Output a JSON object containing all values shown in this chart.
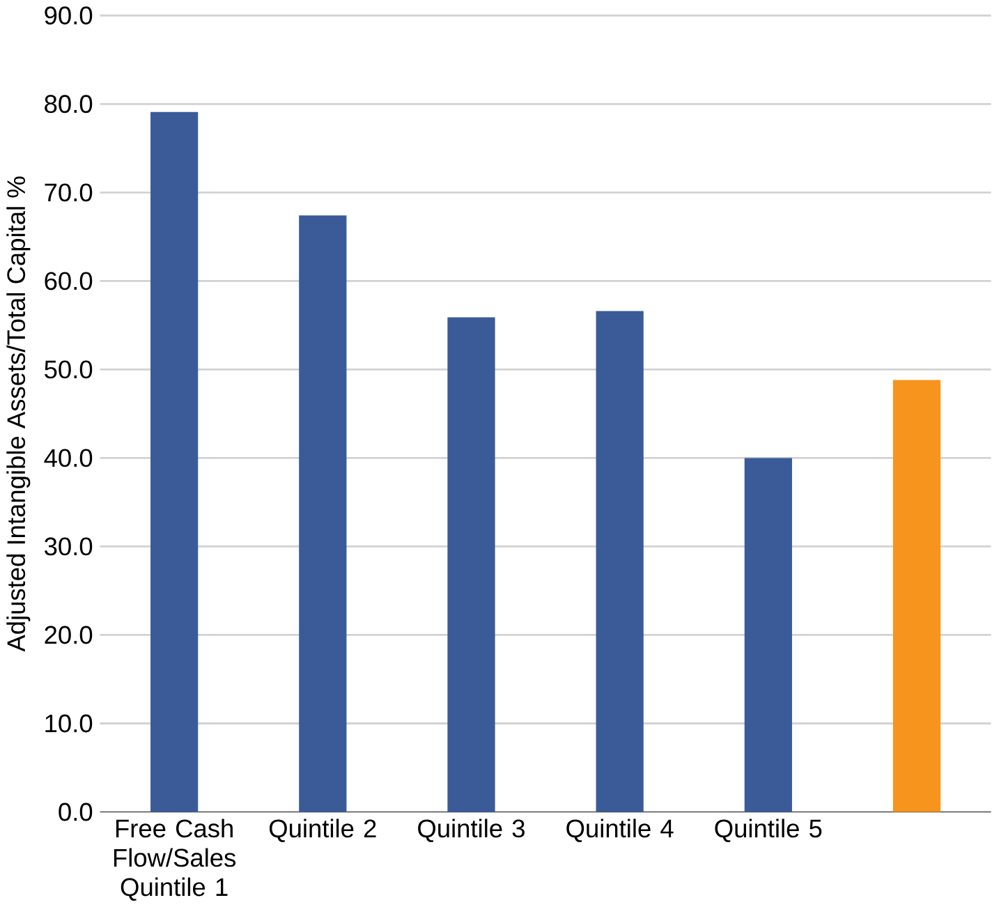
{
  "chart_data": {
    "type": "bar",
    "ylabel": "Adjusted Intangible Assets/Total Capital %",
    "categories": [
      "Free Cash Flow/Sales Quintile 1",
      "Quintile 2",
      "Quintile 3",
      "Quintile 4",
      "Quintile 5",
      null
    ],
    "values": [
      79.1,
      67.4,
      55.9,
      56.6,
      40.0,
      48.8
    ],
    "colors": [
      "#3a5b98",
      "#3a5b98",
      "#3a5b98",
      "#3a5b98",
      "#3a5b98",
      "#f7941d"
    ],
    "ylim": [
      0,
      90
    ],
    "yticks": [
      {
        "value": 0,
        "label": "0.0"
      },
      {
        "value": 10,
        "label": "10.0"
      },
      {
        "value": 20,
        "label": "20.0"
      },
      {
        "value": 30,
        "label": "30.0"
      },
      {
        "value": 40,
        "label": "40.0"
      },
      {
        "value": 50,
        "label": "50.0"
      },
      {
        "value": 60,
        "label": "60.0"
      },
      {
        "value": 70,
        "label": "70.0"
      },
      {
        "value": 80,
        "label": "80.0"
      },
      {
        "value": 90,
        "label": "90.0"
      }
    ],
    "grid": "y"
  }
}
